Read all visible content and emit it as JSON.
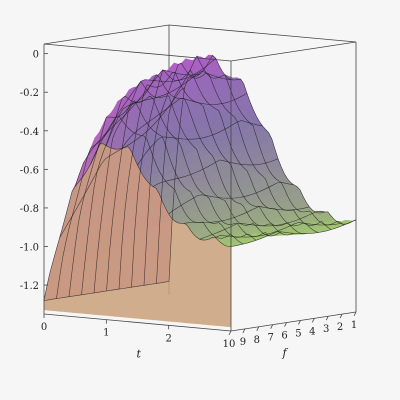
{
  "chart_data": {
    "type": "surface3d",
    "title": "",
    "axes": {
      "t": {
        "label": "t",
        "range": [
          0,
          3
        ],
        "ticks": [
          0,
          1,
          2
        ]
      },
      "f": {
        "label": "f",
        "range": [
          1,
          10
        ],
        "ticks": [
          10,
          9,
          8,
          7,
          6,
          5,
          4,
          3,
          2,
          1
        ]
      },
      "z": {
        "label": "",
        "range": [
          -1.35,
          0.05
        ],
        "ticks": [
          "0",
          "-0.2",
          "-0.4",
          "-0.6",
          "-0.8",
          "-1.0",
          "-1.2"
        ]
      }
    },
    "surface": {
      "description_values": "z(t,f) = -H(t) - A(t)*|sin(2.2*(t - 0.15*(10-f)) - 0.5*(10-f))|",
      "plateau_z": -0.02,
      "floor_z": -1.28,
      "transition_center_t": 1.95,
      "ripple_amplitude_max": 0.12,
      "ripple_amplitude_at_t3": 0.03
    },
    "grid": false,
    "box": true,
    "colors": {
      "low_t_high": "#d050d8",
      "mid": "#7a6fb0",
      "high_t_low": "#8ed66b",
      "floor": "#c8a07a",
      "mesh": "#1a1a1a",
      "background": "#f6f6f6"
    }
  }
}
